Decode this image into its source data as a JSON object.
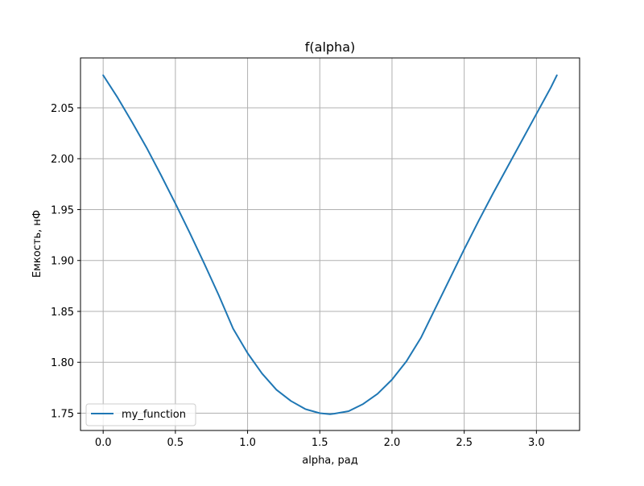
{
  "chart_data": {
    "type": "line",
    "title": "f(alpha)",
    "xlabel": "alpha, рад",
    "ylabel": "Емкость, нФ",
    "xlim": [
      -0.157,
      3.299
    ],
    "ylim": [
      1.733,
      2.099
    ],
    "grid": true,
    "legend_position": "lower-left",
    "x_ticks": [
      0.0,
      0.5,
      1.0,
      1.5,
      2.0,
      2.5,
      3.0
    ],
    "x_tick_labels": [
      "0.0",
      "0.5",
      "1.0",
      "1.5",
      "2.0",
      "2.5",
      "3.0"
    ],
    "y_ticks": [
      1.75,
      1.8,
      1.85,
      1.9,
      1.95,
      2.0,
      2.05
    ],
    "y_tick_labels": [
      "1.75",
      "1.80",
      "1.85",
      "1.90",
      "1.95",
      "2.00",
      "2.05"
    ],
    "series": [
      {
        "name": "my_function",
        "color": "#1f77b4",
        "x": [
          0.0,
          0.1,
          0.2,
          0.3,
          0.4,
          0.5,
          0.6,
          0.7,
          0.8,
          0.9,
          1.0,
          1.1,
          1.2,
          1.3,
          1.4,
          1.5,
          1.5708,
          1.6,
          1.7,
          1.8,
          1.9,
          2.0,
          2.1,
          2.2,
          2.3,
          2.4,
          2.5,
          2.6,
          2.7,
          2.8,
          2.9,
          3.0,
          3.1,
          3.1416
        ],
        "y": [
          2.082,
          2.06,
          2.036,
          2.011,
          1.984,
          1.956,
          1.927,
          1.897,
          1.866,
          1.833,
          1.809,
          1.789,
          1.773,
          1.762,
          1.754,
          1.75,
          1.749,
          1.7495,
          1.752,
          1.759,
          1.769,
          1.783,
          1.801,
          1.824,
          1.853,
          1.882,
          1.911,
          1.939,
          1.966,
          1.992,
          2.018,
          2.044,
          2.07,
          2.082
        ]
      }
    ]
  }
}
